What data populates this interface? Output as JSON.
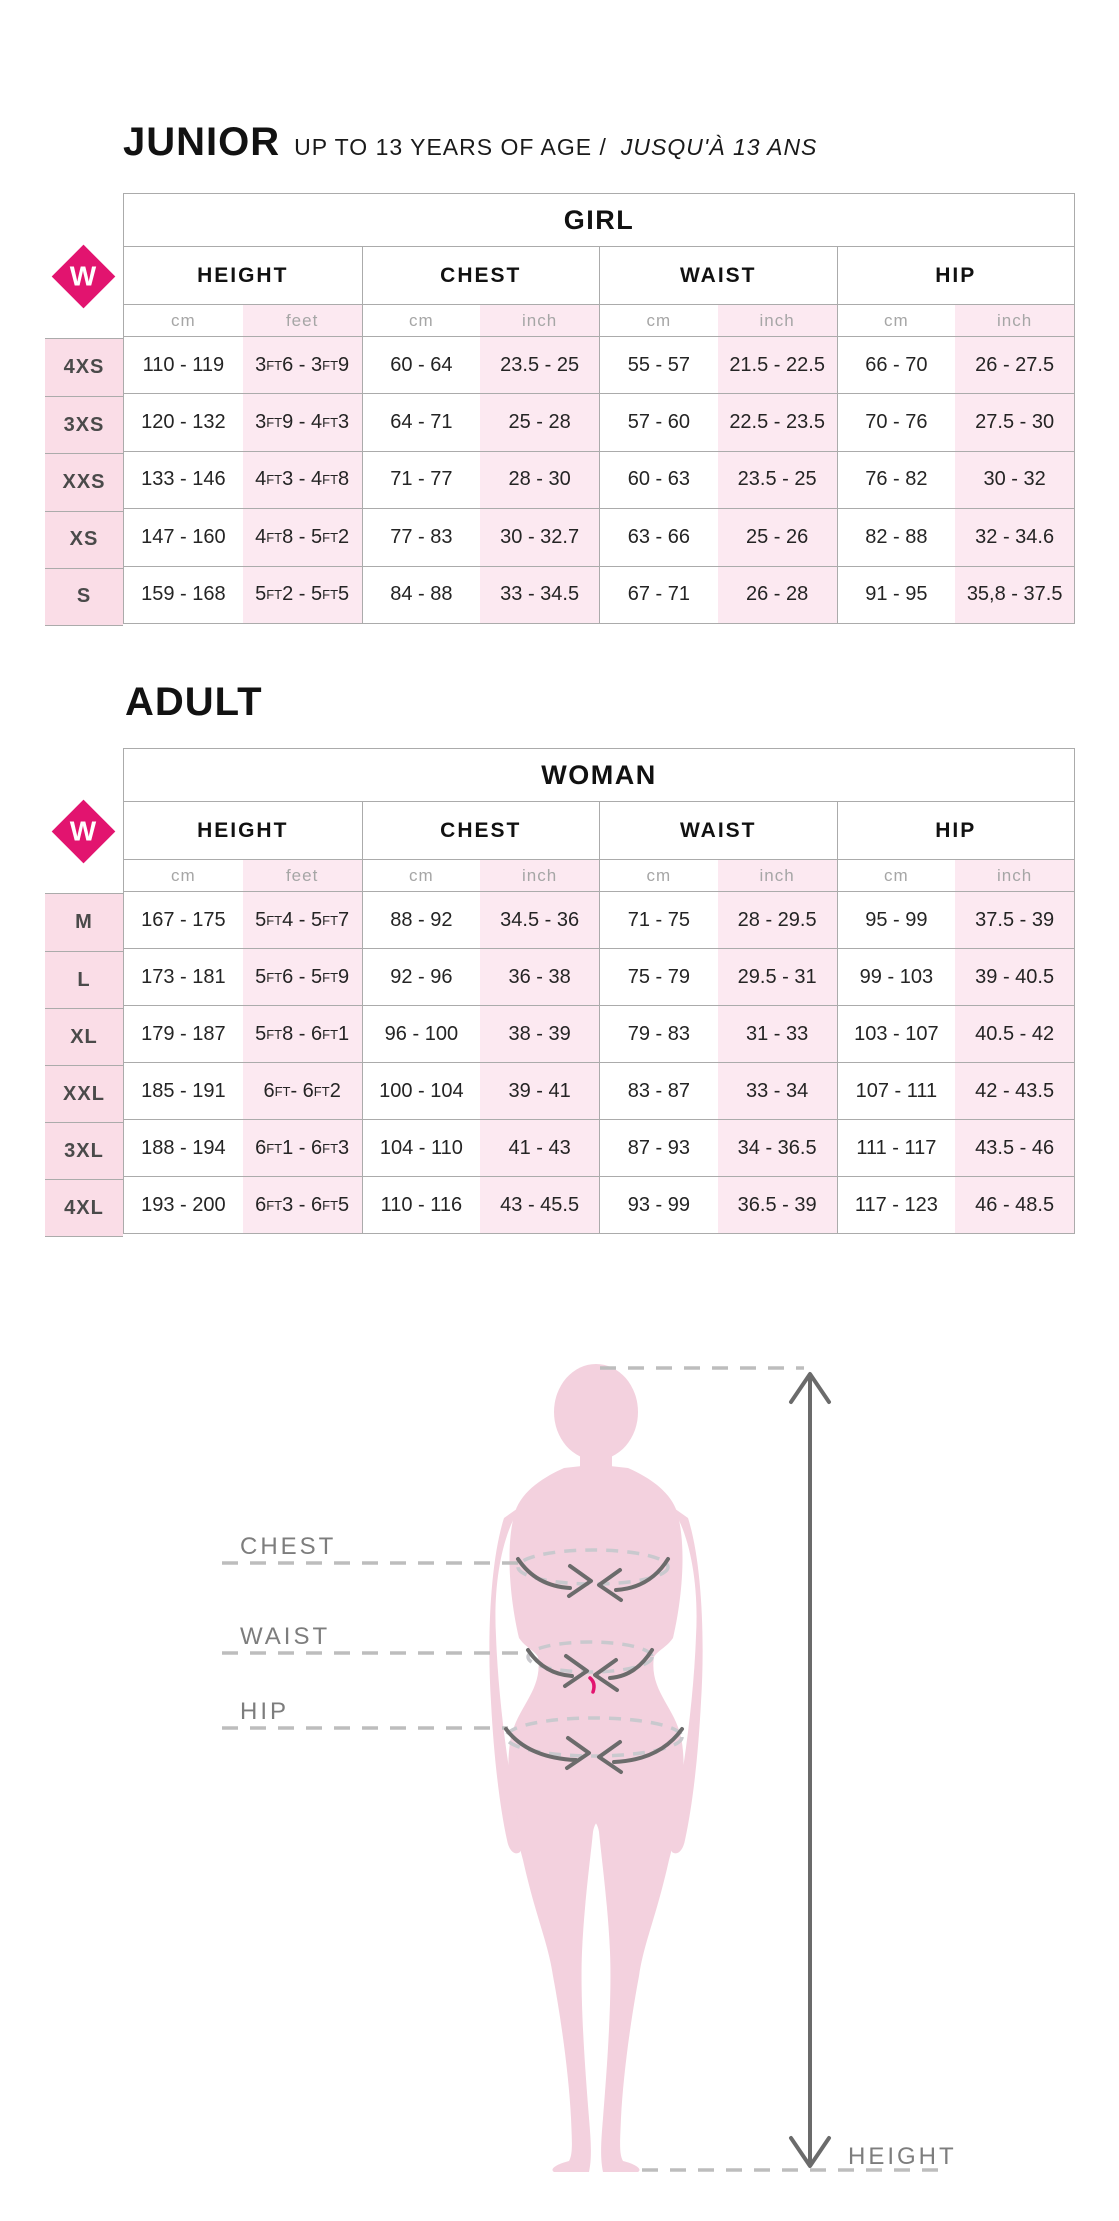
{
  "colors": {
    "accent": "#E2146F",
    "size_col_pink": "#FADDE7",
    "stripe_pink": "#FCE9F1",
    "silhouette_pink": "#F3D1DE",
    "border_gray": "#ABABAB",
    "unit_text_gray": "#A6A6A6",
    "label_gray": "#7D7D7D",
    "arrow_gray": "#6B6B6B",
    "dash_gray": "#BDBDBD",
    "ellipse_dash_gray": "#C9C9CE"
  },
  "logo": {
    "letter": "W"
  },
  "junior": {
    "title": "JUNIOR",
    "subtitle_en": "UP TO 13 YEARS OF AGE /",
    "subtitle_fr": "JUSQU'À 13 ANS",
    "table": {
      "group_header": "GIRL",
      "columns": [
        "HEIGHT",
        "CHEST",
        "WAIST",
        "HIP"
      ],
      "units": [
        "cm",
        "feet",
        "cm",
        "inch",
        "cm",
        "inch",
        "cm",
        "inch"
      ],
      "rows": [
        {
          "size": "4XS",
          "cells": [
            "110 - 119",
            "3FT6 - 3FT9",
            "60 - 64",
            "23.5 - 25",
            "55 - 57",
            "21.5 - 22.5",
            "66 - 70",
            "26 - 27.5"
          ]
        },
        {
          "size": "3XS",
          "cells": [
            "120 - 132",
            "3FT9 - 4FT3",
            "64 - 71",
            "25 - 28",
            "57 - 60",
            "22.5 - 23.5",
            "70 - 76",
            "27.5 - 30"
          ]
        },
        {
          "size": "XXS",
          "cells": [
            "133 - 146",
            "4FT3 - 4FT8",
            "71 - 77",
            "28 - 30",
            "60 - 63",
            "23.5 - 25",
            "76 - 82",
            "30 - 32"
          ]
        },
        {
          "size": "XS",
          "cells": [
            "147 - 160",
            "4FT8 - 5FT2",
            "77 - 83",
            "30 - 32.7",
            "63 - 66",
            "25 - 26",
            "82 - 88",
            "32 - 34.6"
          ]
        },
        {
          "size": "S",
          "cells": [
            "159 - 168",
            "5FT2 - 5FT5",
            "84 - 88",
            "33 - 34.5",
            "67 - 71",
            "26 - 28",
            "91 - 95",
            "35,8 - 37.5"
          ]
        }
      ]
    }
  },
  "adult": {
    "title": "ADULT",
    "table": {
      "group_header": "WOMAN",
      "columns": [
        "HEIGHT",
        "CHEST",
        "WAIST",
        "HIP"
      ],
      "units": [
        "cm",
        "feet",
        "cm",
        "inch",
        "cm",
        "inch",
        "cm",
        "inch"
      ],
      "rows": [
        {
          "size": "M",
          "cells": [
            "167 - 175",
            "5FT4 - 5FT7",
            "88 - 92",
            "34.5 - 36",
            "71 - 75",
            "28 - 29.5",
            "95 - 99",
            "37.5 - 39"
          ]
        },
        {
          "size": "L",
          "cells": [
            "173 - 181",
            "5FT6 - 5FT9",
            "92 - 96",
            "36 - 38",
            "75 - 79",
            "29.5 - 31",
            "99 - 103",
            "39 - 40.5"
          ]
        },
        {
          "size": "XL",
          "cells": [
            "179 - 187",
            "5FT8 - 6FT1",
            "96 - 100",
            "38 - 39",
            "79 - 83",
            "31 - 33",
            "103 - 107",
            "40.5 - 42"
          ]
        },
        {
          "size": "XXL",
          "cells": [
            "185 - 191",
            "6FT - 6FT2",
            "100 - 104",
            "39 - 41",
            "83 - 87",
            "33 - 34",
            "107 - 111",
            "42 - 43.5"
          ]
        },
        {
          "size": "3XL",
          "cells": [
            "188 - 194",
            "6FT1 - 6FT3",
            "104 - 110",
            "41 - 43",
            "87 - 93",
            "34 - 36.5",
            "111 - 117",
            "43.5 - 46"
          ]
        },
        {
          "size": "4XL",
          "cells": [
            "193 - 200",
            "6FT3 - 6FT5",
            "110 - 116",
            "43 - 45.5",
            "93 - 99",
            "36.5 - 39",
            "117 - 123",
            "46 - 48.5"
          ]
        }
      ]
    }
  },
  "diagram": {
    "chest_label": "CHEST",
    "waist_label": "WAIST",
    "hip_label": "HIP",
    "height_label": "HEIGHT"
  }
}
